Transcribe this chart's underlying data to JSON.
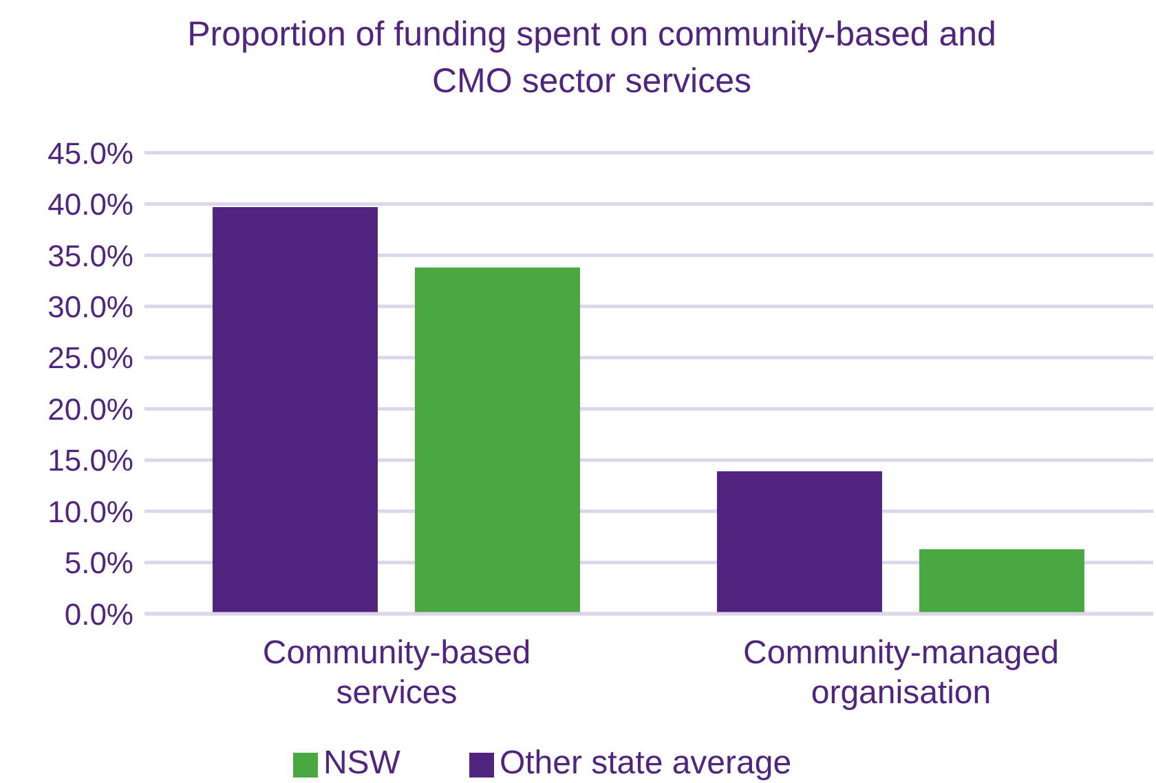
{
  "chart_data": {
    "type": "bar",
    "title": "Proportion of funding spent on community-based and CMO sector services",
    "categories": [
      "Community-based services",
      "Community-managed organisation"
    ],
    "series": [
      {
        "name": "Other state average",
        "color": "#51247f",
        "values": [
          39.7,
          13.9
        ]
      },
      {
        "name": "NSW",
        "color": "#4aa842",
        "values": [
          33.8,
          6.3
        ]
      }
    ],
    "ylim": [
      0,
      45
    ],
    "yticks": [
      {
        "value": 0,
        "label": "0.0%"
      },
      {
        "value": 5,
        "label": "5.0%"
      },
      {
        "value": 10,
        "label": "10.0%"
      },
      {
        "value": 15,
        "label": "15.0%"
      },
      {
        "value": 20,
        "label": "20.0%"
      },
      {
        "value": 25,
        "label": "25.0%"
      },
      {
        "value": 30,
        "label": "30.0%"
      },
      {
        "value": 35,
        "label": "35.0%"
      },
      {
        "value": 40,
        "label": "40.0%"
      },
      {
        "value": 45,
        "label": "45.0%"
      }
    ],
    "grid": "y",
    "legend": "bottom"
  }
}
